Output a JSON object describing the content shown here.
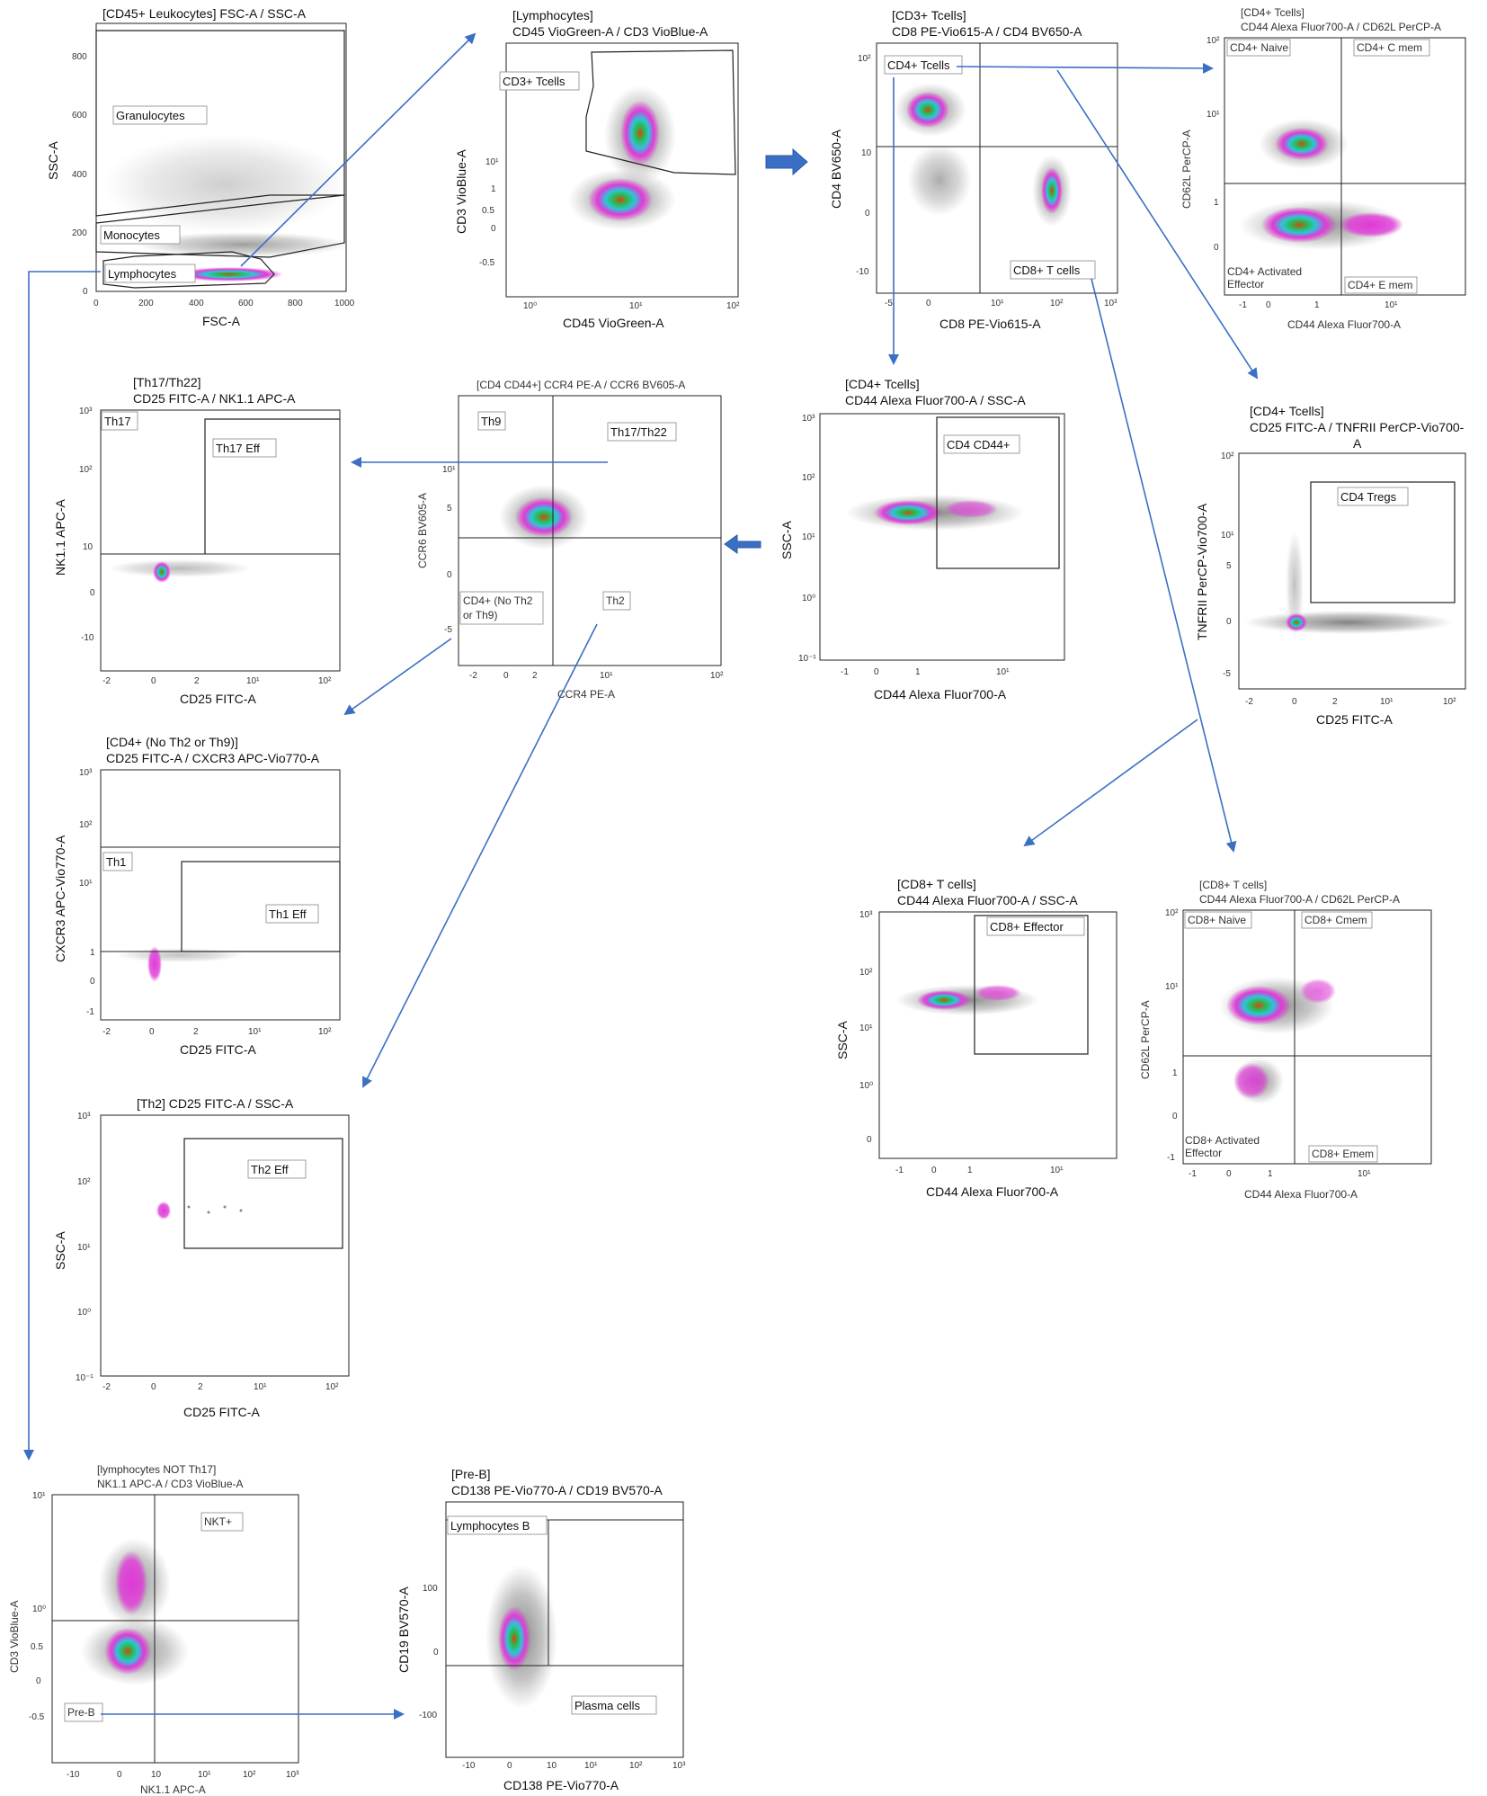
{
  "plots": {
    "p1": {
      "title": "[CD45+ Leukocytes] FSC-A / SSC-A",
      "xlabel": "FSC-A",
      "ylabel": "SSC-A",
      "xticks": [
        "0",
        "200",
        "400",
        "600",
        "800",
        "1000"
      ],
      "yticks": [
        "800",
        "600",
        "400",
        "200",
        "0"
      ],
      "gates": [
        "Granulocytes",
        "Monocytes",
        "Lymphocytes"
      ]
    },
    "p2": {
      "title_line1": "[Lymphocytes]",
      "title_line2": "CD45 VioGreen-A / CD3 VioBlue-A",
      "xlabel": "CD45 VioGreen-A",
      "ylabel": "CD3 VioBlue-A",
      "xticks": [
        "10⁰",
        "10¹",
        "10²"
      ],
      "yticks": [
        "10¹",
        "1",
        "0.5",
        "0",
        "-0.5"
      ],
      "gates": [
        "CD3+ Tcells"
      ]
    },
    "p3": {
      "title_line1": "[CD3+ Tcells]",
      "title_line2": "CD8 PE-Vio615-A / CD4 BV650-A",
      "xlabel": "CD8 PE-Vio615-A",
      "ylabel": "CD4 BV650-A",
      "xticks": [
        "-5",
        "0",
        "10¹",
        "10²",
        "10³"
      ],
      "yticks": [
        "10²",
        "10",
        "0",
        "-10"
      ],
      "gates": [
        "CD4+ Tcells",
        "CD8+ T cells"
      ]
    },
    "p4": {
      "title_line1": "[CD4+ Tcells]",
      "title_line2": "CD44 Alexa Fluor700-A / CD62L PerCP-A",
      "xlabel": "CD44 Alexa Fluor700-A",
      "ylabel": "CD62L PerCP-A",
      "xticks": [
        "-1",
        "0",
        "1",
        "10¹"
      ],
      "yticks": [
        "10²",
        "10¹",
        "1",
        "0"
      ],
      "gates": [
        "CD4+ Naive",
        "CD4+ C mem",
        "CD4+ Activated",
        "Effector",
        "CD4+ E mem"
      ]
    },
    "p5": {
      "title_line1": "[CD4+ Tcells]",
      "title_line2": "CD25 FITC-A / TNFRII PerCP-Vio700-",
      "title_line3": "A",
      "xlabel": "CD25 FITC-A",
      "ylabel": "TNFRII PerCP-Vio700-A",
      "xticks": [
        "-2",
        "0",
        "2",
        "10¹",
        "10²"
      ],
      "yticks": [
        "10²",
        "10¹",
        "5",
        "0",
        "-5"
      ],
      "gates": [
        "CD4 Tregs"
      ]
    },
    "p6": {
      "title_line1": "[CD4+ Tcells]",
      "title_line2": "CD44 Alexa Fluor700-A / SSC-A",
      "xlabel": "CD44 Alexa Fluor700-A",
      "ylabel": "SSC-A",
      "xticks": [
        "-1",
        "0",
        "1",
        "10¹"
      ],
      "yticks": [
        "10³",
        "10²",
        "10¹",
        "10⁰",
        "10⁻¹"
      ],
      "gates": [
        "CD4 CD44+"
      ]
    },
    "p7": {
      "title": "[CD4 CD44+] CCR4 PE-A / CCR6 BV605-A",
      "xlabel": "CCR4 PE-A",
      "ylabel": "CCR6 BV605-A",
      "xticks": [
        "-2",
        "0",
        "2",
        "10¹",
        "10²"
      ],
      "yticks": [
        "10¹",
        "5",
        "0",
        "-5"
      ],
      "gates": [
        "Th9",
        "Th17/Th22",
        "CD4+ (No Th2",
        "or Th9)",
        "Th2"
      ]
    },
    "p8": {
      "title_line1": "[Th17/Th22]",
      "title_line2": "CD25 FITC-A / NK1.1 APC-A",
      "xlabel": "CD25 FITC-A",
      "ylabel": "NK1.1 APC-A",
      "xticks": [
        "-2",
        "0",
        "2",
        "10¹",
        "10²"
      ],
      "yticks": [
        "10³",
        "10²",
        "10",
        "0",
        "-10"
      ],
      "gates": [
        "Th17",
        "Th17 Eff"
      ]
    },
    "p9": {
      "title_line1": "[CD4+ (No Th2 or Th9)]",
      "title_line2": "CD25 FITC-A / CXCR3 APC-Vio770-A",
      "xlabel": "CD25 FITC-A",
      "ylabel": "CXCR3 APC-Vio770-A",
      "xticks": [
        "-2",
        "0",
        "2",
        "10¹",
        "10²"
      ],
      "yticks": [
        "10³",
        "10²",
        "10¹",
        "1",
        "0",
        "-1"
      ],
      "gates": [
        "Th1",
        "Th1 Eff"
      ]
    },
    "p10": {
      "title": "[Th2] CD25 FITC-A / SSC-A",
      "xlabel": "CD25 FITC-A",
      "ylabel": "SSC-A",
      "xticks": [
        "-2",
        "0",
        "2",
        "10¹",
        "10²"
      ],
      "yticks": [
        "10³",
        "10²",
        "10¹",
        "10⁰",
        "10⁻¹"
      ],
      "gates": [
        "Th2 Eff"
      ]
    },
    "p11": {
      "title_line1": "[CD8+ T cells]",
      "title_line2": "CD44 Alexa Fluor700-A / SSC-A",
      "xlabel": "CD44 Alexa Fluor700-A",
      "ylabel": "SSC-A",
      "xticks": [
        "-1",
        "0",
        "1",
        "10¹"
      ],
      "yticks": [
        "10³",
        "10²",
        "10¹",
        "10⁰",
        "0"
      ],
      "gates": [
        "CD8+ Effector"
      ]
    },
    "p12": {
      "title_line1": "[CD8+ T cells]",
      "title_line2": "CD44 Alexa Fluor700-A / CD62L PerCP-A",
      "xlabel": "CD44 Alexa Fluor700-A",
      "ylabel": "CD62L PerCP-A",
      "xticks": [
        "-1",
        "0",
        "1",
        "10¹"
      ],
      "yticks": [
        "10²",
        "10¹",
        "1",
        "0",
        "-1"
      ],
      "gates": [
        "CD8+ Naive",
        "CD8+ Cmem",
        "CD8+ Activated",
        "Effector",
        "CD8+ Emem"
      ]
    },
    "p13": {
      "title_line1": "[lymphocytes NOT Th17]",
      "title_line2": "NK1.1 APC-A / CD3 VioBlue-A",
      "xlabel": "NK1.1 APC-A",
      "ylabel": "CD3 VioBlue-A",
      "xticks": [
        "-10",
        "0",
        "10",
        "10¹",
        "10²",
        "10³"
      ],
      "yticks": [
        "10¹",
        "10⁰",
        "0.5",
        "0",
        "-0.5"
      ],
      "gates": [
        "NKT+",
        "Pre-B"
      ]
    },
    "p14": {
      "title_line1": "[Pre-B]",
      "title_line2": "CD138 PE-Vio770-A / CD19 BV570-A",
      "xlabel": "CD138 PE-Vio770-A",
      "ylabel": "CD19 BV570-A",
      "xticks": [
        "-10",
        "0",
        "10",
        "10¹",
        "10²",
        "10³"
      ],
      "yticks": [
        "100",
        "0",
        "-100"
      ],
      "gates": [
        "Lymphocytes B",
        "Plasma cells"
      ]
    }
  },
  "colors": {
    "flow": "#3a6fc4",
    "dots": "#8a8a8a",
    "dense_magenta": "#e13ad8",
    "dense_cyan": "#2fc4d8",
    "dense_green": "#2db84a",
    "dense_core": "#e03a1a"
  }
}
